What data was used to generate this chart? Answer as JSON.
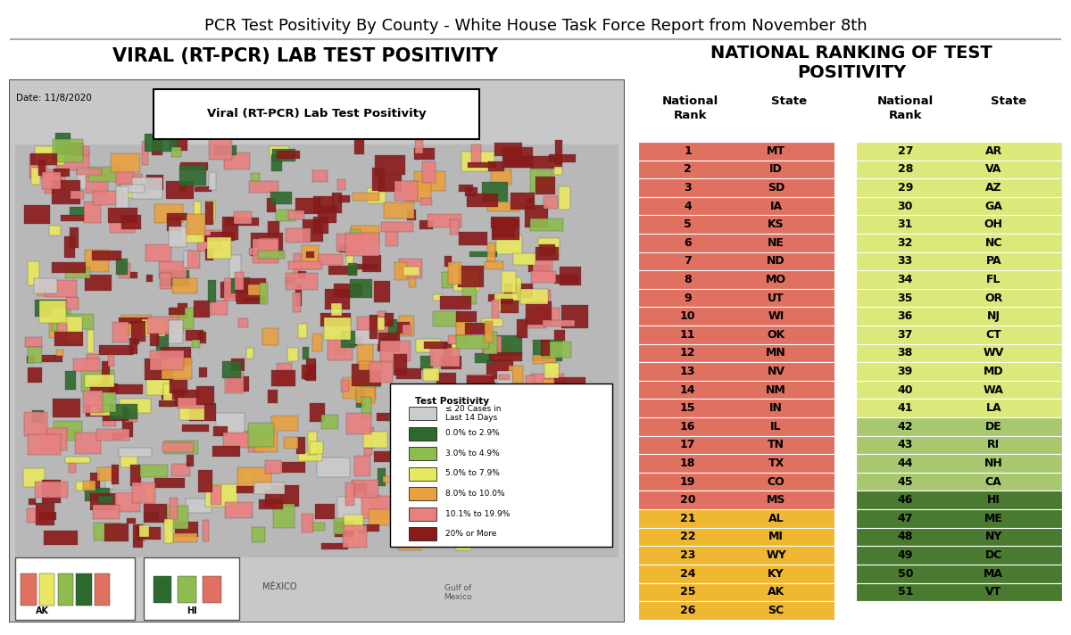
{
  "title": "PCR Test Positivity By County - White House Task Force Report from November 8th",
  "left_section_title": "VIRAL (RT-PCR) LAB TEST POSITIVITY",
  "right_section_title": "NATIONAL RANKING OF TEST\nPOSITIVITY",
  "map_title": "Viral (RT-PCR) Lab Test Positivity",
  "map_date": "Date: 11/8/2020",
  "rankings_left": [
    [
      1,
      "MT"
    ],
    [
      2,
      "ID"
    ],
    [
      3,
      "SD"
    ],
    [
      4,
      "IA"
    ],
    [
      5,
      "KS"
    ],
    [
      6,
      "NE"
    ],
    [
      7,
      "ND"
    ],
    [
      8,
      "MO"
    ],
    [
      9,
      "UT"
    ],
    [
      10,
      "WI"
    ],
    [
      11,
      "OK"
    ],
    [
      12,
      "MN"
    ],
    [
      13,
      "NV"
    ],
    [
      14,
      "NM"
    ],
    [
      15,
      "IN"
    ],
    [
      16,
      "IL"
    ],
    [
      17,
      "TN"
    ],
    [
      18,
      "TX"
    ],
    [
      19,
      "CO"
    ],
    [
      20,
      "MS"
    ],
    [
      21,
      "AL"
    ],
    [
      22,
      "MI"
    ],
    [
      23,
      "WY"
    ],
    [
      24,
      "KY"
    ],
    [
      25,
      "AK"
    ],
    [
      26,
      "SC"
    ]
  ],
  "rankings_right": [
    [
      27,
      "AR"
    ],
    [
      28,
      "VA"
    ],
    [
      29,
      "AZ"
    ],
    [
      30,
      "GA"
    ],
    [
      31,
      "OH"
    ],
    [
      32,
      "NC"
    ],
    [
      33,
      "PA"
    ],
    [
      34,
      "FL"
    ],
    [
      35,
      "OR"
    ],
    [
      36,
      "NJ"
    ],
    [
      37,
      "CT"
    ],
    [
      38,
      "WV"
    ],
    [
      39,
      "MD"
    ],
    [
      40,
      "WA"
    ],
    [
      41,
      "LA"
    ],
    [
      42,
      "DE"
    ],
    [
      43,
      "RI"
    ],
    [
      44,
      "NH"
    ],
    [
      45,
      "CA"
    ],
    [
      46,
      "HI"
    ],
    [
      47,
      "ME"
    ],
    [
      48,
      "NY"
    ],
    [
      49,
      "DC"
    ],
    [
      50,
      "MA"
    ],
    [
      51,
      "VT"
    ]
  ],
  "row_colors_left": [
    "#e07060",
    "#e07060",
    "#e07060",
    "#e07060",
    "#e07060",
    "#e07060",
    "#e07060",
    "#e07060",
    "#e07060",
    "#e07060",
    "#e07060",
    "#e07060",
    "#e07060",
    "#e07060",
    "#e07060",
    "#e07060",
    "#e07060",
    "#e07060",
    "#e07060",
    "#e07060",
    "#f0b830",
    "#f0b830",
    "#f0b830",
    "#f0b830",
    "#f0b830",
    "#f0b830"
  ],
  "row_colors_right": [
    "#dde87a",
    "#dde87a",
    "#dde87a",
    "#dde87a",
    "#dde87a",
    "#dde87a",
    "#dde87a",
    "#dde87a",
    "#dde87a",
    "#dde87a",
    "#dde87a",
    "#dde87a",
    "#dde87a",
    "#dde87a",
    "#dde87a",
    "#a8c870",
    "#a8c870",
    "#a8c870",
    "#a8c870",
    "#4a7a30",
    "#4a7a30",
    "#4a7a30",
    "#4a7a30",
    "#4a7a30",
    "#4a7a30"
  ],
  "legend_colors": [
    "#cccccc",
    "#2d6a2d",
    "#8fbc4f",
    "#e8e860",
    "#e8a040",
    "#e88080",
    "#8b1a1a"
  ],
  "legend_labels": [
    "≤ 20 Cases in\nLast 14 Days",
    "0.0% to 2.9%",
    "3.0% to 4.9%",
    "5.0% to 7.9%",
    "8.0% to 10.0%",
    "10.1% to 19.9%",
    "20% or More"
  ],
  "background_color": "#ffffff",
  "map_bg_color": "#c8c8c8"
}
